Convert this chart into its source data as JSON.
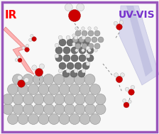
{
  "bg": "#f8f8f8",
  "border_color": "#9955bb",
  "border_lw": 2.5,
  "ir_label": "IR",
  "ir_color": "#ff0000",
  "ir_fontsize": 11,
  "uvvis_label": "UV-VIS",
  "uvvis_color": "#7733cc",
  "uvvis_fontsize": 10,
  "large_pah_color": "#c0c0c0",
  "large_pah_edge": "#909090",
  "dark_pah_color": "#707070",
  "dark_pah_edge": "#404040",
  "med_pah_color": "#aaaaaa",
  "med_pah_edge": "#777777",
  "oxygen_color": "#cc0000",
  "hydrogen_color": "#e8e8e8",
  "h_edge": "#aaaaaa",
  "bond_color": "#555555",
  "hbond_color": "#888888",
  "bolt_color": "#ffaaaa",
  "bolt_edge": "#dd7777",
  "uvvis_color1": "#c8c8e8",
  "uvvis_color2": "#b0b0d8"
}
